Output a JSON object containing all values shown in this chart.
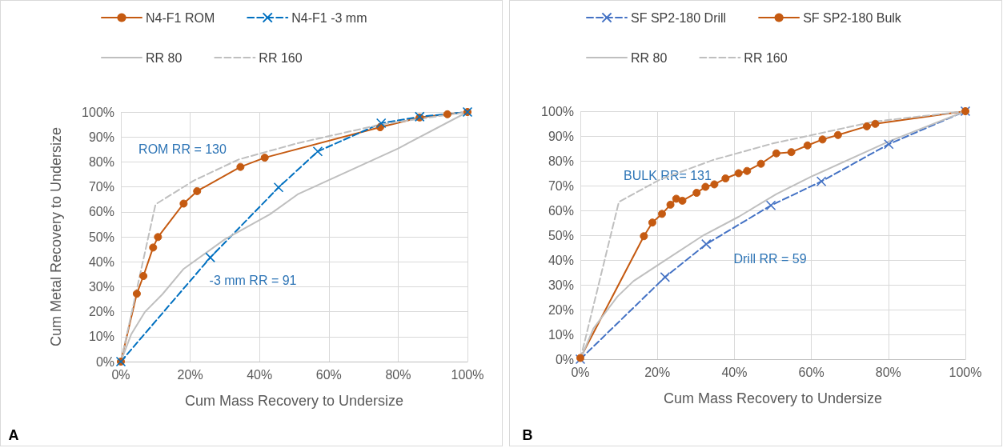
{
  "chart_data": [
    {
      "type": "line",
      "xlabel": "Cum Mass Recovery to Undersize",
      "ylabel": "Cum Metal Recovery to Undersize",
      "xlim": [
        0,
        100
      ],
      "ylim": [
        0,
        100
      ],
      "xticks": [
        {
          "value": 0,
          "label": "0%"
        },
        {
          "value": 20,
          "label": "20%"
        },
        {
          "value": 40,
          "label": "40%"
        },
        {
          "value": 60,
          "label": "60%"
        },
        {
          "value": 80,
          "label": "80%"
        },
        {
          "value": 100,
          "label": "100%"
        }
      ],
      "yticks": [
        {
          "value": 0,
          "label": "0%"
        },
        {
          "value": 10,
          "label": "10%"
        },
        {
          "value": 20,
          "label": "20%"
        },
        {
          "value": 30,
          "label": "30%"
        },
        {
          "value": 40,
          "label": "40%"
        },
        {
          "value": 50,
          "label": "50%"
        },
        {
          "value": 60,
          "label": "60%"
        },
        {
          "value": 70,
          "label": "70%"
        },
        {
          "value": 80,
          "label": "80%"
        },
        {
          "value": 90,
          "label": "90%"
        },
        {
          "value": 100,
          "label": "100%"
        }
      ],
      "grid": true,
      "legend": "top",
      "series": [
        {
          "name": "N4-F1 ROM",
          "color": "#c55a11",
          "marker": "circle",
          "line_style": "solid",
          "x": [
            0,
            4.6,
            6.5,
            9.3,
            10.7,
            18.1,
            22,
            34.5,
            41.5,
            74.8,
            86.2,
            94.2,
            100
          ],
          "values": [
            0,
            27.2,
            34.3,
            45.7,
            49.9,
            63.3,
            68.3,
            78,
            81.7,
            93.9,
            97.8,
            99.1,
            100
          ]
        },
        {
          "name": "N4-F1 -3 mm",
          "color": "#0070c0",
          "marker": "cross",
          "line_style": "dashed",
          "x": [
            0,
            25.8,
            45.5,
            56.8,
            75.1,
            86.2,
            100
          ],
          "values": [
            0,
            41.7,
            69.8,
            84.2,
            95.5,
            98.1,
            100
          ]
        },
        {
          "name": "RR 80",
          "color": "#bfbfbf",
          "marker": "none",
          "line_style": "solid",
          "x": [
            0,
            3,
            7,
            12,
            18,
            30,
            43,
            51,
            80,
            100
          ],
          "values": [
            0,
            11,
            20,
            27,
            37,
            49,
            59,
            67,
            85.4,
            100
          ]
        },
        {
          "name": "RR 160",
          "color": "#bfbfbf",
          "marker": "none",
          "line_style": "dashed",
          "x": [
            0,
            10,
            21,
            34,
            51,
            75,
            100
          ],
          "values": [
            0,
            63,
            72.5,
            81,
            87.5,
            95,
            100
          ]
        }
      ],
      "annotations": [
        "ROM RR = 130",
        "-3 mm RR = 91",
        "A"
      ]
    },
    {
      "type": "line",
      "xlabel": "Cum Mass Recovery to Undersize",
      "xlim": [
        0,
        100
      ],
      "ylim": [
        0,
        100
      ],
      "xticks": [
        {
          "value": 0,
          "label": "0%"
        },
        {
          "value": 20,
          "label": "20%"
        },
        {
          "value": 40,
          "label": "40%"
        },
        {
          "value": 60,
          "label": "60%"
        },
        {
          "value": 80,
          "label": "80%"
        },
        {
          "value": 100,
          "label": "100%"
        }
      ],
      "yticks": [
        {
          "value": 0,
          "label": "0%"
        },
        {
          "value": 10,
          "label": "10%"
        },
        {
          "value": 20,
          "label": "20%"
        },
        {
          "value": 30,
          "label": "30%"
        },
        {
          "value": 40,
          "label": "40%"
        },
        {
          "value": 50,
          "label": "50%"
        },
        {
          "value": 60,
          "label": "60%"
        },
        {
          "value": 70,
          "label": "70%"
        },
        {
          "value": 80,
          "label": "80%"
        },
        {
          "value": 90,
          "label": "90%"
        },
        {
          "value": 100,
          "label": "100%"
        }
      ],
      "grid": true,
      "legend": "top",
      "series": [
        {
          "name": "SF SP2-180 Drill",
          "color": "#4472c4",
          "marker": "cross",
          "line_style": "dashed",
          "x": [
            0,
            22,
            32.7,
            49.5,
            62.6,
            80.1,
            100
          ],
          "values": [
            0,
            33.1,
            46.4,
            62,
            71.7,
            86.7,
            100
          ]
        },
        {
          "name": "SF SP2-180 Bulk",
          "color": "#c55a11",
          "marker": "circle",
          "line_style": "solid",
          "x": [
            0,
            16.5,
            18.7,
            21.2,
            23.4,
            24.9,
            26.5,
            30.2,
            32.5,
            34.8,
            37.7,
            41.1,
            43.3,
            46.9,
            50.9,
            54.8,
            59,
            62.9,
            66.9,
            74.4,
            76.6,
            100
          ],
          "values": [
            0.5,
            49.6,
            55.1,
            58.6,
            62.3,
            64.7,
            63.9,
            67.1,
            69.5,
            70.5,
            72.9,
            75,
            75.9,
            78.8,
            83,
            83.5,
            86.2,
            88.6,
            90.4,
            93.9,
            94.9,
            100
          ]
        },
        {
          "name": "RR 80",
          "color": "#bfbfbf",
          "marker": "none",
          "line_style": "solid",
          "x": [
            0,
            3.4,
            9.6,
            13.8,
            20.6,
            31.6,
            41.2,
            50.9,
            59.8,
            80.1,
            100
          ],
          "values": [
            0,
            12.4,
            25.2,
            31.5,
            38.4,
            49.6,
            57.5,
            66.6,
            73.5,
            87.8,
            100
          ]
        },
        {
          "name": "RR 160",
          "color": "#bfbfbf",
          "marker": "none",
          "line_style": "dashed",
          "x": [
            0,
            10,
            20.6,
            34.4,
            50,
            76.3,
            100
          ],
          "values": [
            0,
            63.4,
            72.4,
            80.3,
            87,
            95.8,
            100
          ]
        }
      ],
      "annotations": [
        "BULK RR= 131",
        "Drill RR = 59",
        "B"
      ]
    }
  ]
}
